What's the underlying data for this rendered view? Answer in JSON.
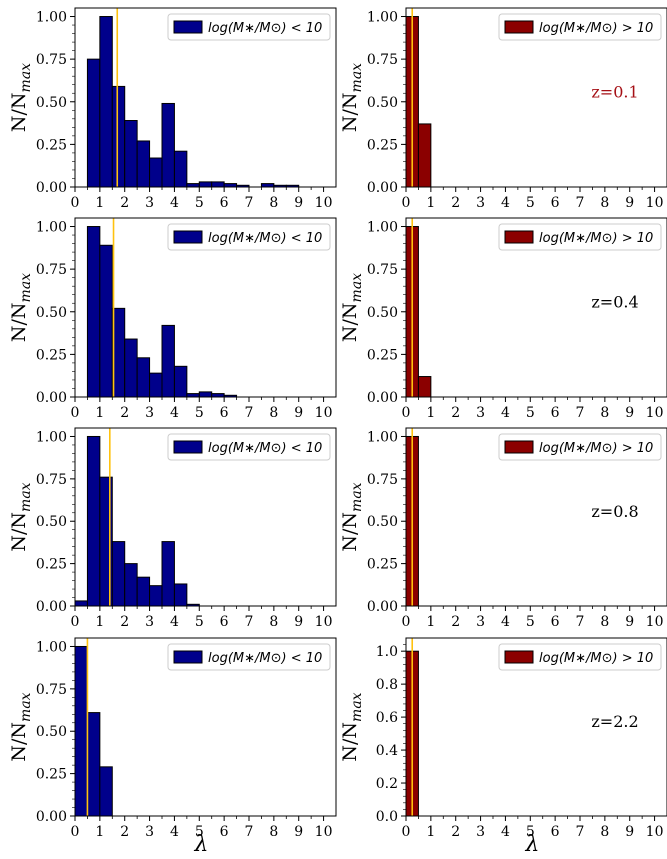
{
  "figure": {
    "xlabel": "λ",
    "ylabel_main": "N/N",
    "ylabel_sub": "max",
    "legend_low": "log(M∗/M⊙) < 10",
    "legend_high": "log(M∗/M⊙) > 10",
    "colors": {
      "low": "#00008b",
      "high": "#8b0000",
      "vline": "#ffc20e",
      "z_first": "#a50f15",
      "z_other": "#000000"
    }
  },
  "chart_data": [
    {
      "type": "bar",
      "panel": "row1-left",
      "bin_width": 0.5,
      "bin_left_edges": [
        0.5,
        1.0,
        1.5,
        2.0,
        2.5,
        3.0,
        3.5,
        4.0,
        4.5,
        5.0,
        5.5,
        6.0,
        6.5,
        7.0,
        7.5,
        8.0,
        8.5
      ],
      "values": [
        0.75,
        1.0,
        0.59,
        0.39,
        0.27,
        0.17,
        0.49,
        0.21,
        0.02,
        0.03,
        0.03,
        0.02,
        0.01,
        0.0,
        0.02,
        0.01,
        0.01
      ],
      "vline_x": 1.7,
      "xlim": [
        0,
        10.5
      ],
      "ylim": [
        0,
        1.05
      ],
      "xticks": [
        0,
        1,
        2,
        3,
        4,
        5,
        6,
        7,
        8,
        9,
        10
      ],
      "yticks": [
        "0.00",
        "0.25",
        "0.50",
        "0.75",
        "1.00"
      ],
      "legend": "log(M∗/M⊙) < 10",
      "legend_position": "top-right",
      "color": "#00008b"
    },
    {
      "type": "bar",
      "panel": "row1-right",
      "bin_width": 0.5,
      "bin_left_edges": [
        0.0,
        0.5
      ],
      "values": [
        1.0,
        0.37
      ],
      "vline_x": 0.25,
      "xlim": [
        0,
        10.5
      ],
      "ylim": [
        0,
        1.05
      ],
      "xticks": [
        0,
        1,
        2,
        3,
        4,
        5,
        6,
        7,
        8,
        9,
        10
      ],
      "yticks": [
        "0.00",
        "0.25",
        "0.50",
        "0.75",
        "1.00"
      ],
      "legend": "log(M∗/M⊙) > 10",
      "legend_position": "top-right",
      "annotation": "z=0.1",
      "color": "#8b0000"
    },
    {
      "type": "bar",
      "panel": "row2-left",
      "bin_width": 0.5,
      "bin_left_edges": [
        0.5,
        1.0,
        1.5,
        2.0,
        2.5,
        3.0,
        3.5,
        4.0,
        4.5,
        5.0,
        5.5,
        6.0
      ],
      "values": [
        1.0,
        0.89,
        0.52,
        0.34,
        0.23,
        0.14,
        0.42,
        0.18,
        0.02,
        0.03,
        0.02,
        0.01
      ],
      "vline_x": 1.55,
      "xlim": [
        0,
        10.5
      ],
      "ylim": [
        0,
        1.05
      ],
      "xticks": [
        0,
        1,
        2,
        3,
        4,
        5,
        6,
        7,
        8,
        9,
        10
      ],
      "yticks": [
        "0.00",
        "0.25",
        "0.50",
        "0.75",
        "1.00"
      ],
      "legend": "log(M∗/M⊙) < 10",
      "legend_position": "top-right",
      "color": "#00008b"
    },
    {
      "type": "bar",
      "panel": "row2-right",
      "bin_width": 0.5,
      "bin_left_edges": [
        0.0,
        0.5
      ],
      "values": [
        1.0,
        0.12
      ],
      "vline_x": 0.25,
      "xlim": [
        0,
        10.5
      ],
      "ylim": [
        0,
        1.05
      ],
      "xticks": [
        0,
        1,
        2,
        3,
        4,
        5,
        6,
        7,
        8,
        9,
        10
      ],
      "yticks": [
        "0.00",
        "0.25",
        "0.50",
        "0.75",
        "1.00"
      ],
      "legend": "log(M∗/M⊙) > 10",
      "legend_position": "top-right",
      "annotation": "z=0.4",
      "color": "#8b0000"
    },
    {
      "type": "bar",
      "panel": "row3-left",
      "bin_width": 0.5,
      "bin_left_edges": [
        0.0,
        0.5,
        1.0,
        1.5,
        2.0,
        2.5,
        3.0,
        3.5,
        4.0,
        4.5
      ],
      "values": [
        0.03,
        1.0,
        0.76,
        0.38,
        0.25,
        0.17,
        0.12,
        0.38,
        0.13,
        0.01
      ],
      "vline_x": 1.4,
      "xlim": [
        0,
        10.5
      ],
      "ylim": [
        0,
        1.05
      ],
      "xticks": [
        0,
        1,
        2,
        3,
        4,
        5,
        6,
        7,
        8,
        9,
        10
      ],
      "yticks": [
        "0.00",
        "0.25",
        "0.50",
        "0.75",
        "1.00"
      ],
      "legend": "log(M∗/M⊙) < 10",
      "legend_position": "top-right",
      "color": "#00008b"
    },
    {
      "type": "bar",
      "panel": "row3-right",
      "bin_width": 0.5,
      "bin_left_edges": [
        0.0
      ],
      "values": [
        1.0
      ],
      "vline_x": 0.25,
      "xlim": [
        0,
        10.5
      ],
      "ylim": [
        0,
        1.05
      ],
      "xticks": [
        0,
        1,
        2,
        3,
        4,
        5,
        6,
        7,
        8,
        9,
        10
      ],
      "yticks": [
        "0.00",
        "0.25",
        "0.50",
        "0.75",
        "1.00"
      ],
      "legend": "log(M∗/M⊙) > 10",
      "legend_position": "top-right",
      "annotation": "z=0.8",
      "color": "#8b0000"
    },
    {
      "type": "bar",
      "panel": "row4-left",
      "bin_width": 0.5,
      "bin_left_edges": [
        0.0,
        0.5,
        1.0
      ],
      "values": [
        1.0,
        0.61,
        0.29
      ],
      "vline_x": 0.5,
      "xlim": [
        0,
        10.5
      ],
      "ylim": [
        0,
        1.05
      ],
      "xticks": [
        0,
        1,
        2,
        3,
        4,
        5,
        6,
        7,
        8,
        9,
        10
      ],
      "yticks": [
        "0.00",
        "0.25",
        "0.50",
        "0.75",
        "1.00"
      ],
      "legend": "log(M∗/M⊙) < 10",
      "legend_position": "top-right",
      "color": "#00008b"
    },
    {
      "type": "bar",
      "panel": "row4-right",
      "bin_width": 0.5,
      "bin_left_edges": [
        0.0
      ],
      "values": [
        1.0
      ],
      "vline_x": 0.25,
      "xlim": [
        0,
        10.5
      ],
      "ylim": [
        0,
        1.08
      ],
      "xticks": [
        0,
        1,
        2,
        3,
        4,
        5,
        6,
        7,
        8,
        9,
        10
      ],
      "yticks": [
        "0.0",
        "0.2",
        "0.4",
        "0.6",
        "0.8",
        "1.0"
      ],
      "legend": "log(M∗/M⊙) > 10",
      "legend_position": "top-right",
      "annotation": "z=2.2",
      "color": "#8b0000"
    }
  ]
}
